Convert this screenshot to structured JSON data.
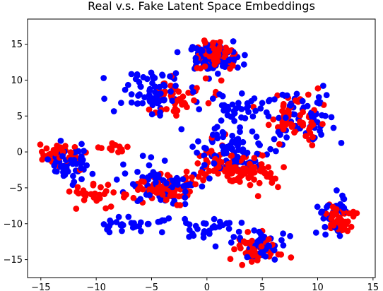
{
  "chart_data": {
    "type": "scatter",
    "title": "Real v.s. Fake Latent Space Embeddings",
    "xlabel": "",
    "ylabel": "",
    "xlim": [
      -16.2,
      15.2
    ],
    "ylim": [
      -17.5,
      18.5
    ],
    "xticks": [
      -15,
      -10,
      -5,
      0,
      5,
      10,
      15
    ],
    "yticks": [
      -15,
      -10,
      -5,
      0,
      5,
      10,
      15
    ],
    "grid": false,
    "legend": "none",
    "series": [
      {
        "color": "#0000ff",
        "clusters": [
          {
            "cx": 0.5,
            "cy": 13.0,
            "sx": 2.2,
            "sy": 1.8,
            "n": 90
          },
          {
            "cx": -5.0,
            "cy": 8.5,
            "sx": 3.2,
            "sy": 2.4,
            "n": 70
          },
          {
            "cx": -12.5,
            "cy": -1.5,
            "sx": 2.0,
            "sy": 2.4,
            "n": 45
          },
          {
            "cx": -4.0,
            "cy": -4.5,
            "sx": 3.0,
            "sy": 2.6,
            "n": 70
          },
          {
            "cx": 2.0,
            "cy": 0.0,
            "sx": 3.0,
            "sy": 3.4,
            "n": 90
          },
          {
            "cx": 5.0,
            "cy": -13.0,
            "sx": 2.0,
            "sy": 1.8,
            "n": 50
          },
          {
            "cx": 11.5,
            "cy": -8.5,
            "sx": 1.4,
            "sy": 2.4,
            "n": 40
          },
          {
            "cx": 9.0,
            "cy": 5.0,
            "sx": 2.4,
            "sy": 3.4,
            "n": 55
          },
          {
            "cx": -7.0,
            "cy": -10.0,
            "sx": 4.0,
            "sy": 1.2,
            "n": 30
          },
          {
            "cx": 0.0,
            "cy": -10.5,
            "sx": 3.0,
            "sy": 2.0,
            "n": 30
          },
          {
            "cx": 3.0,
            "cy": 6.0,
            "sx": 3.0,
            "sy": 2.0,
            "n": 40
          }
        ]
      },
      {
        "color": "#ff0000",
        "clusters": [
          {
            "cx": 1.0,
            "cy": 13.5,
            "sx": 1.6,
            "sy": 1.4,
            "n": 95
          },
          {
            "cx": -2.5,
            "cy": 7.5,
            "sx": 2.8,
            "sy": 2.2,
            "n": 45
          },
          {
            "cx": -13.5,
            "cy": -0.5,
            "sx": 1.6,
            "sy": 1.6,
            "n": 50
          },
          {
            "cx": -4.0,
            "cy": -5.0,
            "sx": 2.6,
            "sy": 2.0,
            "n": 85
          },
          {
            "cx": 2.0,
            "cy": -2.0,
            "sx": 2.8,
            "sy": 2.6,
            "n": 85
          },
          {
            "cx": 4.5,
            "cy": -13.5,
            "sx": 1.8,
            "sy": 1.6,
            "n": 55
          },
          {
            "cx": 12.0,
            "cy": -9.5,
            "sx": 1.3,
            "sy": 1.6,
            "n": 45
          },
          {
            "cx": 8.0,
            "cy": 4.5,
            "sx": 2.2,
            "sy": 3.0,
            "n": 60
          },
          {
            "cx": -10.0,
            "cy": -6.0,
            "sx": 2.0,
            "sy": 1.8,
            "n": 30
          },
          {
            "cx": 4.5,
            "cy": -3.0,
            "sx": 2.0,
            "sy": 1.6,
            "n": 35
          },
          {
            "cx": -8.5,
            "cy": 0.5,
            "sx": 1.6,
            "sy": 0.6,
            "n": 15
          }
        ]
      }
    ]
  }
}
